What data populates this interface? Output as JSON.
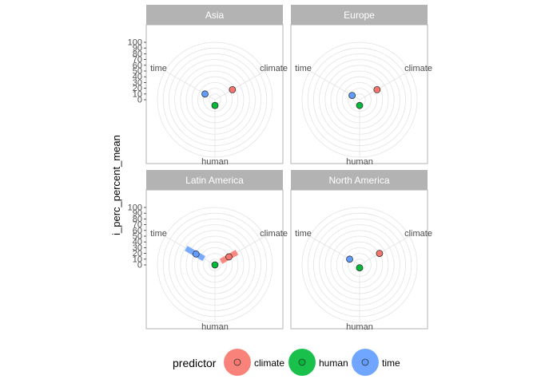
{
  "chart_data": {
    "type": "radar",
    "ylabel": "i_perc_percent_mean",
    "rlim": [
      0,
      100
    ],
    "r_ticks": [
      0,
      10,
      20,
      30,
      40,
      50,
      60,
      70,
      80,
      90,
      100
    ],
    "categories": [
      "climate",
      "human",
      "time"
    ],
    "legend": {
      "title": "predictor",
      "position": "bottom"
    },
    "colors": {
      "climate": "#F8766D",
      "human": "#00BA38",
      "time": "#619CFF"
    },
    "panels": [
      {
        "title": "Asia",
        "points": {
          "climate": 35,
          "human": 10,
          "time": 20
        },
        "ranges": {
          "climate": [
            35,
            35
          ],
          "human": [
            5,
            15
          ],
          "time": [
            20,
            20
          ]
        }
      },
      {
        "title": "Europe",
        "points": {
          "climate": 35,
          "human": 10,
          "time": 15
        },
        "ranges": {
          "climate": [
            35,
            35
          ],
          "human": [
            10,
            10
          ],
          "time": [
            15,
            15
          ]
        }
      },
      {
        "title": "Latin America",
        "points": {
          "climate": 28,
          "human": 0,
          "time": 38
        },
        "ranges": {
          "climate": [
            12,
            44
          ],
          "human": [
            0,
            0
          ],
          "time": [
            22,
            58
          ]
        }
      },
      {
        "title": "North America",
        "points": {
          "climate": 40,
          "human": 5,
          "time": 20
        },
        "ranges": {
          "climate": [
            38,
            44
          ],
          "human": [
            2,
            8
          ],
          "time": [
            20,
            20
          ]
        }
      }
    ]
  }
}
